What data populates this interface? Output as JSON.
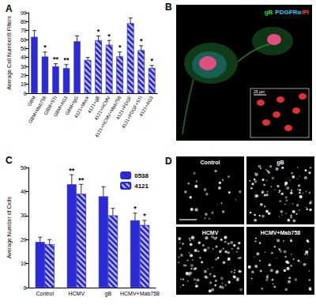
{
  "chart_data": [
    {
      "panel": "A",
      "type": "bar",
      "y_label": "Average Cell Number/8 Filters",
      "categories": [
        "GBM",
        "GBM+Mab758",
        "GBM+STI",
        "GBM+AG3",
        "GBM+IgG",
        "4121+Mock",
        "4121+gB",
        "4121+HCMV",
        "4121+HCMV+Mab758",
        "4121+PDGF",
        "4121+PDGF+STI",
        "4121+AG3"
      ],
      "series": [
        {
          "color": "#2b2bd6",
          "values": [
            63,
            41,
            30,
            28,
            58,
            null,
            null,
            null,
            null,
            null,
            null,
            null
          ],
          "errors": [
            7,
            5,
            3,
            4,
            6,
            null,
            null,
            null,
            null,
            null,
            null,
            null
          ]
        },
        {
          "color": "#2b2bd6",
          "marker": "hatch",
          "values": [
            null,
            null,
            null,
            null,
            null,
            37,
            59,
            54,
            41,
            78,
            48,
            28
          ],
          "errors": [
            null,
            null,
            null,
            null,
            null,
            3,
            5,
            5,
            5,
            6,
            5,
            3
          ]
        }
      ],
      "annotations": [
        null,
        "*",
        "**",
        "**",
        null,
        null,
        "*",
        "*",
        "*",
        null,
        "*",
        "*"
      ],
      "ylim": [
        0,
        90
      ],
      "yticks": [
        0,
        10,
        20,
        30,
        40,
        50,
        60,
        70,
        80,
        90
      ],
      "grid": false
    },
    {
      "panel": "C",
      "type": "bar",
      "y_label": "Average Number of Cells",
      "categories": [
        "Control",
        "HCMV",
        "gB",
        "HCMV+Mab758"
      ],
      "series": [
        {
          "name": "0538",
          "color": "#2b2bd6",
          "values": [
            19,
            43,
            38,
            28
          ],
          "errors": [
            2,
            4,
            4,
            3
          ],
          "annotations": [
            null,
            "**",
            null,
            "*"
          ]
        },
        {
          "name": "4121",
          "color": "#2b2bd6",
          "marker": "hatch",
          "values": [
            18,
            39,
            30,
            26
          ],
          "errors": [
            2,
            4,
            3,
            2
          ],
          "annotations": [
            null,
            "**",
            null,
            "*"
          ]
        }
      ],
      "ylim": [
        0,
        50
      ],
      "yticks": [
        0,
        10,
        20,
        30,
        40,
        50
      ],
      "grid": false,
      "legend": "top-right"
    }
  ],
  "panel_B": {
    "label": "B",
    "stains": [
      {
        "text": "gB",
        "color": "#33dd33"
      },
      {
        "text": "PDGFRα",
        "color": "#33ccff"
      },
      {
        "text": "/PI",
        "color": "#ff4444"
      }
    ],
    "scale_bar": "25 µm"
  },
  "panel_D": {
    "label": "D",
    "images": [
      "Control",
      "gB",
      "HCMV",
      "HCMV+Mab758"
    ]
  }
}
